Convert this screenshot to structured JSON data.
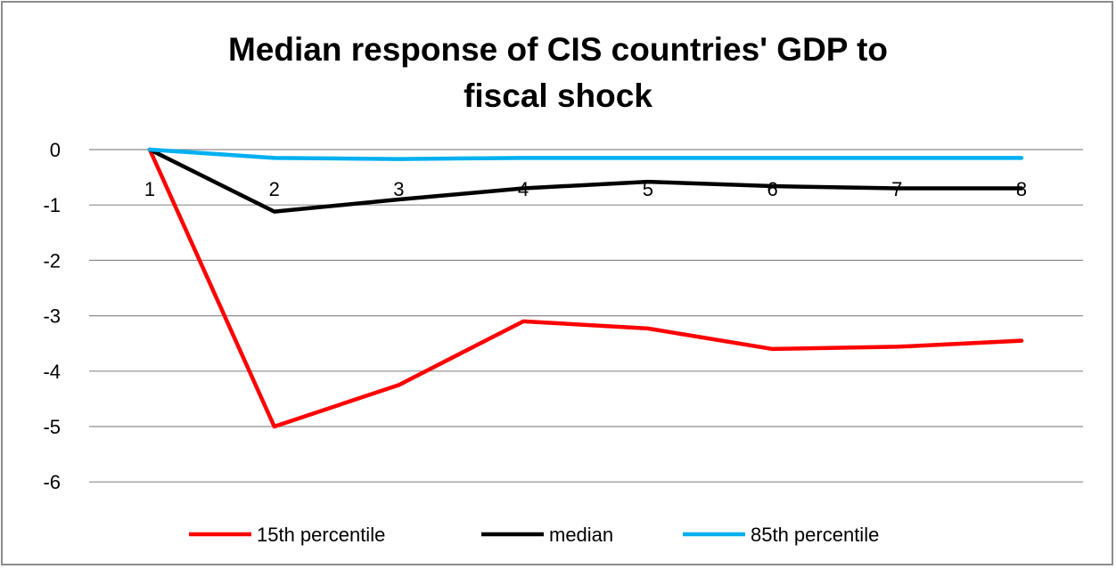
{
  "chart_data": {
    "type": "line",
    "title_lines": [
      "Median response of CIS countries' GDP to",
      "fiscal shock"
    ],
    "xlabel": "",
    "ylabel": "",
    "categories": [
      "1",
      "2",
      "3",
      "4",
      "5",
      "6",
      "7",
      "8"
    ],
    "yticks": [
      "0",
      "-1",
      "-2",
      "-3",
      "-4",
      "-5",
      "-6"
    ],
    "ylim": [
      -6,
      0
    ],
    "grid": true,
    "legend_position": "bottom",
    "series": [
      {
        "name": "15th percentile",
        "color": "#ff0000",
        "values": [
          0,
          -5.0,
          -4.25,
          -3.1,
          -3.23,
          -3.6,
          -3.56,
          -3.45
        ]
      },
      {
        "name": "median",
        "color": "#000000",
        "values": [
          0,
          -1.12,
          -0.9,
          -0.7,
          -0.58,
          -0.66,
          -0.7,
          -0.7
        ]
      },
      {
        "name": "85th percentile",
        "color": "#00b0f0",
        "values": [
          0,
          -0.15,
          -0.17,
          -0.15,
          -0.15,
          -0.15,
          -0.15,
          -0.15
        ]
      }
    ]
  }
}
